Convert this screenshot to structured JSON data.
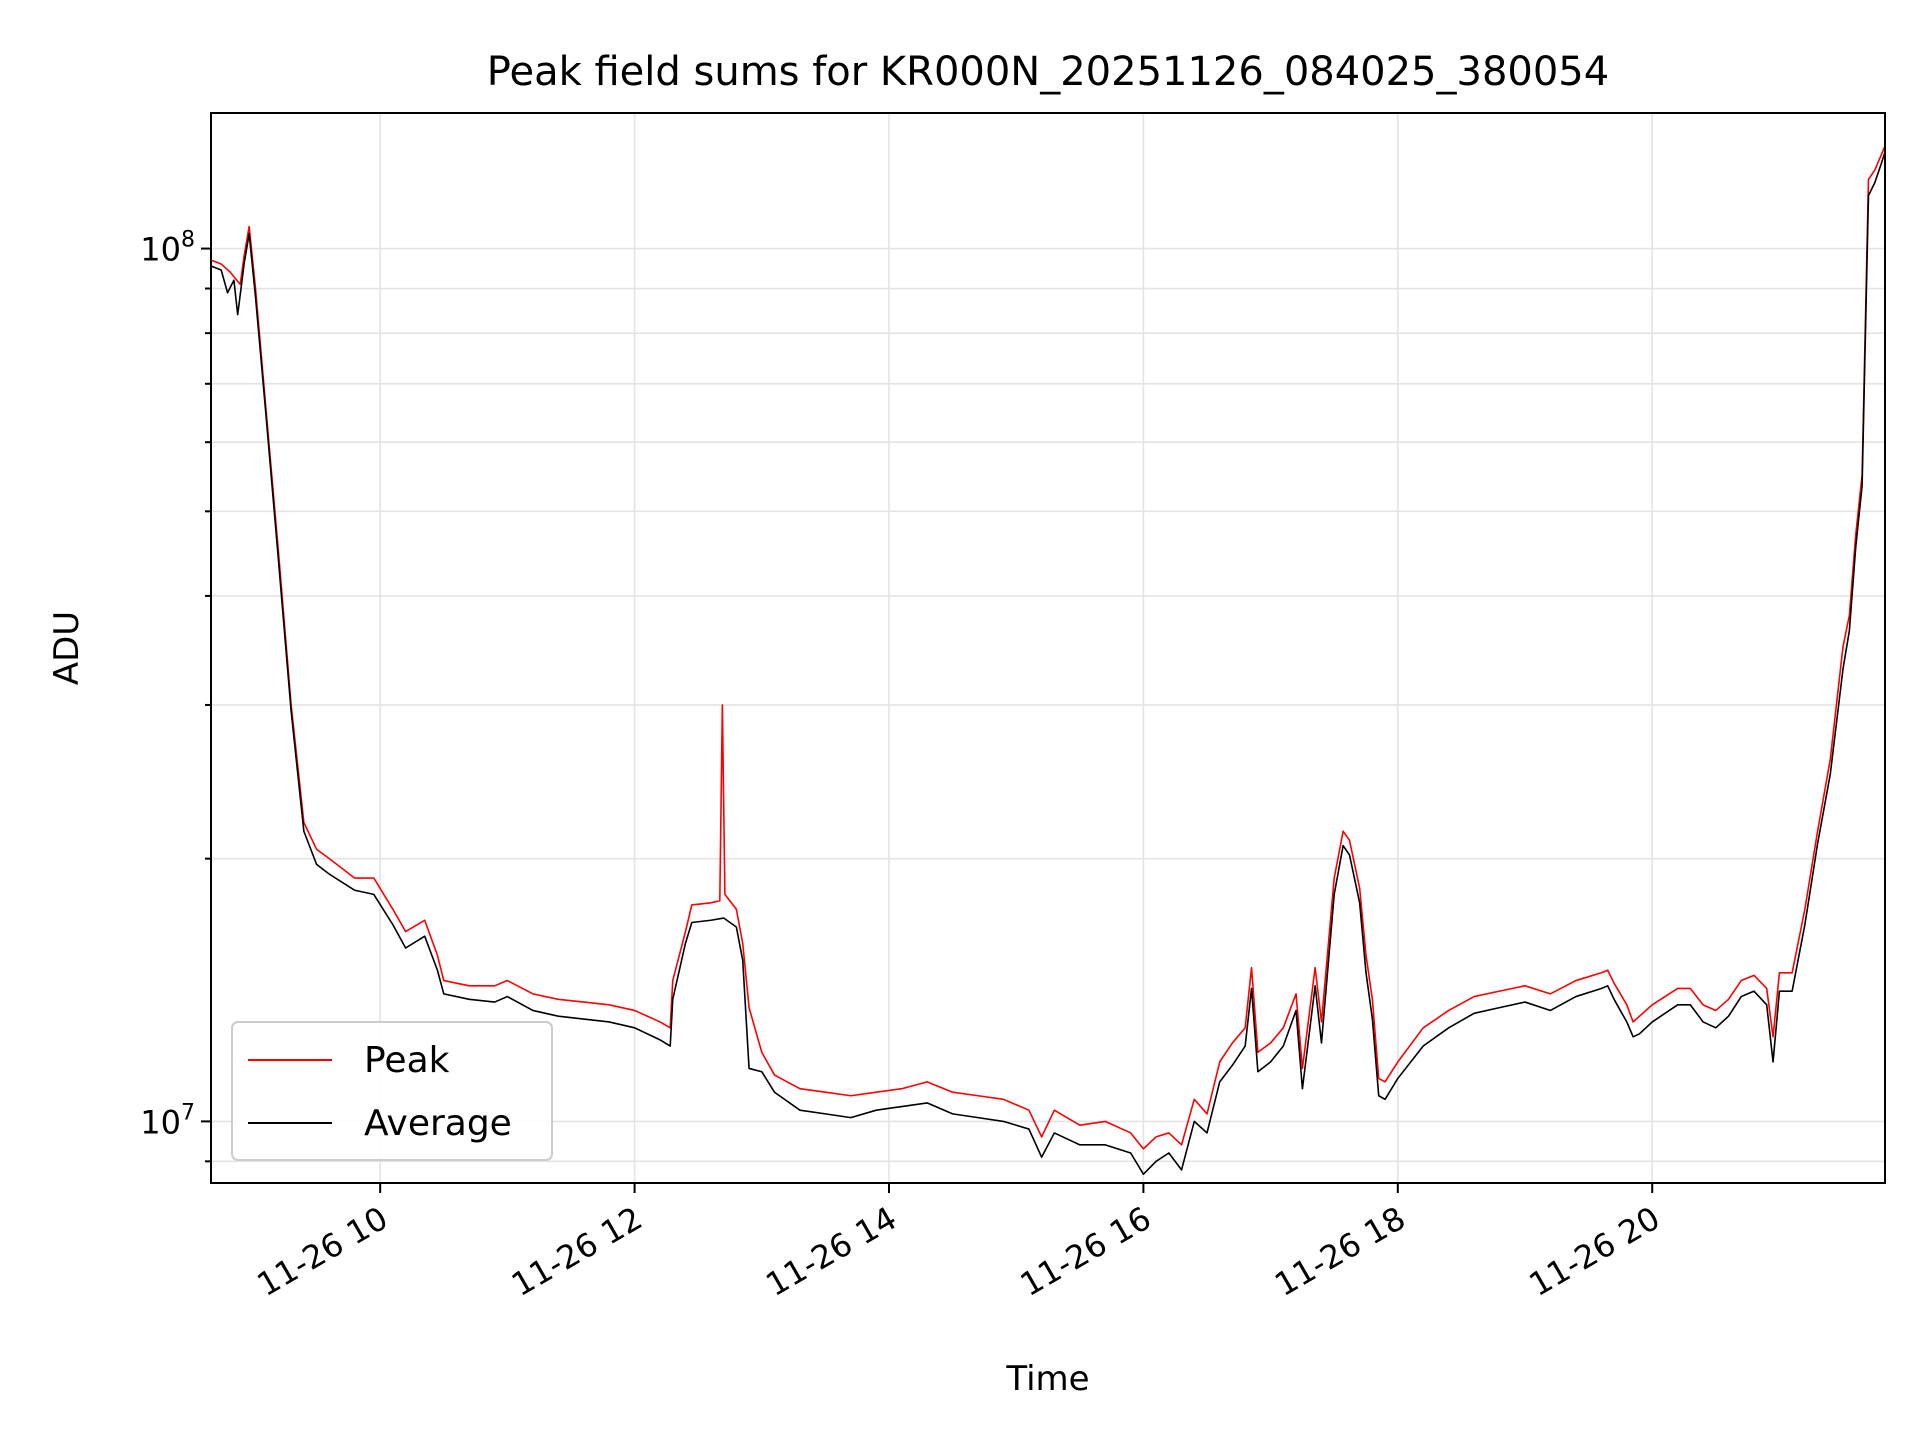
{
  "chart_data": {
    "type": "line",
    "title": "Peak field sums for KR000N_20251126_084025_380054",
    "xlabel": "Time",
    "ylabel": "ADU",
    "yscale": "log",
    "xlim": [
      8.67,
      21.83
    ],
    "ylim": [
      8500000,
      143000000
    ],
    "grid": true,
    "legend_position": "lower-left",
    "x_ticks": [
      {
        "value": 10,
        "label": "11-26 10"
      },
      {
        "value": 12,
        "label": "11-26 12"
      },
      {
        "value": 14,
        "label": "11-26 14"
      },
      {
        "value": 16,
        "label": "11-26 16"
      },
      {
        "value": 18,
        "label": "11-26 18"
      },
      {
        "value": 20,
        "label": "11-26 20"
      }
    ],
    "y_major_ticks": [
      {
        "value": 10000000,
        "base": "10",
        "exp": "7"
      },
      {
        "value": 100000000,
        "base": "10",
        "exp": "8"
      }
    ],
    "y_minor_ticks": [
      9000000,
      20000000,
      30000000,
      40000000,
      50000000,
      60000000,
      70000000,
      80000000,
      90000000
    ],
    "series": [
      {
        "name": "Peak",
        "color": "#ff0000",
        "points": [
          [
            8.67,
            97000000
          ],
          [
            8.75,
            96000000
          ],
          [
            8.82,
            94000000
          ],
          [
            8.9,
            91000000
          ],
          [
            8.93,
            98000000
          ],
          [
            8.97,
            106000000
          ],
          [
            9.02,
            90000000
          ],
          [
            9.1,
            66000000
          ],
          [
            9.2,
            45000000
          ],
          [
            9.3,
            30000000
          ],
          [
            9.4,
            22000000
          ],
          [
            9.5,
            20500000
          ],
          [
            9.6,
            20000000
          ],
          [
            9.8,
            19000000
          ],
          [
            9.95,
            19000000
          ],
          [
            10.1,
            17500000
          ],
          [
            10.2,
            16500000
          ],
          [
            10.35,
            17000000
          ],
          [
            10.45,
            15500000
          ],
          [
            10.5,
            14500000
          ],
          [
            10.7,
            14300000
          ],
          [
            10.9,
            14300000
          ],
          [
            11.0,
            14500000
          ],
          [
            11.2,
            14000000
          ],
          [
            11.4,
            13800000
          ],
          [
            11.6,
            13700000
          ],
          [
            11.8,
            13600000
          ],
          [
            12.0,
            13400000
          ],
          [
            12.2,
            13000000
          ],
          [
            12.28,
            12800000
          ],
          [
            12.3,
            14500000
          ],
          [
            12.4,
            16500000
          ],
          [
            12.45,
            17700000
          ],
          [
            12.6,
            17800000
          ],
          [
            12.67,
            17900000
          ],
          [
            12.69,
            30000000
          ],
          [
            12.71,
            18200000
          ],
          [
            12.8,
            17500000
          ],
          [
            12.85,
            16000000
          ],
          [
            12.9,
            13500000
          ],
          [
            13.0,
            12000000
          ],
          [
            13.1,
            11300000
          ],
          [
            13.3,
            10900000
          ],
          [
            13.5,
            10800000
          ],
          [
            13.7,
            10700000
          ],
          [
            13.9,
            10800000
          ],
          [
            14.1,
            10900000
          ],
          [
            14.3,
            11100000
          ],
          [
            14.5,
            10800000
          ],
          [
            14.7,
            10700000
          ],
          [
            14.9,
            10600000
          ],
          [
            15.1,
            10300000
          ],
          [
            15.2,
            9600000
          ],
          [
            15.3,
            10300000
          ],
          [
            15.5,
            9900000
          ],
          [
            15.7,
            10000000
          ],
          [
            15.9,
            9700000
          ],
          [
            16.0,
            9300000
          ],
          [
            16.1,
            9600000
          ],
          [
            16.2,
            9700000
          ],
          [
            16.3,
            9400000
          ],
          [
            16.4,
            10600000
          ],
          [
            16.5,
            10200000
          ],
          [
            16.6,
            11700000
          ],
          [
            16.7,
            12300000
          ],
          [
            16.8,
            12800000
          ],
          [
            16.85,
            15000000
          ],
          [
            16.9,
            12000000
          ],
          [
            17.0,
            12300000
          ],
          [
            17.1,
            12800000
          ],
          [
            17.2,
            14000000
          ],
          [
            17.25,
            11500000
          ],
          [
            17.35,
            15000000
          ],
          [
            17.4,
            13000000
          ],
          [
            17.5,
            19000000
          ],
          [
            17.57,
            21500000
          ],
          [
            17.62,
            21000000
          ],
          [
            17.7,
            18500000
          ],
          [
            17.75,
            15500000
          ],
          [
            17.8,
            13800000
          ],
          [
            17.85,
            11200000
          ],
          [
            17.9,
            11100000
          ],
          [
            18.0,
            11700000
          ],
          [
            18.2,
            12800000
          ],
          [
            18.4,
            13400000
          ],
          [
            18.6,
            13900000
          ],
          [
            18.8,
            14100000
          ],
          [
            19.0,
            14300000
          ],
          [
            19.2,
            14000000
          ],
          [
            19.4,
            14500000
          ],
          [
            19.6,
            14800000
          ],
          [
            19.65,
            14900000
          ],
          [
            19.7,
            14400000
          ],
          [
            19.8,
            13600000
          ],
          [
            19.85,
            13000000
          ],
          [
            19.9,
            13200000
          ],
          [
            20.0,
            13600000
          ],
          [
            20.2,
            14200000
          ],
          [
            20.3,
            14200000
          ],
          [
            20.4,
            13600000
          ],
          [
            20.5,
            13400000
          ],
          [
            20.6,
            13800000
          ],
          [
            20.7,
            14500000
          ],
          [
            20.8,
            14700000
          ],
          [
            20.9,
            14200000
          ],
          [
            20.95,
            12500000
          ],
          [
            21.0,
            14800000
          ],
          [
            21.1,
            14800000
          ],
          [
            21.2,
            17500000
          ],
          [
            21.3,
            21500000
          ],
          [
            21.4,
            26000000
          ],
          [
            21.5,
            35000000
          ],
          [
            21.55,
            38000000
          ],
          [
            21.6,
            47000000
          ],
          [
            21.65,
            55000000
          ],
          [
            21.7,
            120000000
          ],
          [
            21.75,
            123000000
          ],
          [
            21.8,
            128000000
          ],
          [
            21.83,
            131000000
          ]
        ]
      },
      {
        "name": "Average",
        "color": "#000000",
        "points": [
          [
            8.67,
            95500000
          ],
          [
            8.75,
            94500000
          ],
          [
            8.8,
            89000000
          ],
          [
            8.85,
            92000000
          ],
          [
            8.88,
            84000000
          ],
          [
            8.93,
            96000000
          ],
          [
            8.97,
            104000000
          ],
          [
            9.02,
            88000000
          ],
          [
            9.1,
            65000000
          ],
          [
            9.2,
            44000000
          ],
          [
            9.3,
            29500000
          ],
          [
            9.4,
            21500000
          ],
          [
            9.5,
            19700000
          ],
          [
            9.6,
            19200000
          ],
          [
            9.8,
            18400000
          ],
          [
            9.95,
            18200000
          ],
          [
            10.1,
            16800000
          ],
          [
            10.2,
            15800000
          ],
          [
            10.35,
            16300000
          ],
          [
            10.45,
            14900000
          ],
          [
            10.5,
            14000000
          ],
          [
            10.7,
            13800000
          ],
          [
            10.9,
            13700000
          ],
          [
            11.0,
            13900000
          ],
          [
            11.2,
            13400000
          ],
          [
            11.4,
            13200000
          ],
          [
            11.6,
            13100000
          ],
          [
            11.8,
            13000000
          ],
          [
            12.0,
            12800000
          ],
          [
            12.2,
            12400000
          ],
          [
            12.28,
            12200000
          ],
          [
            12.3,
            13800000
          ],
          [
            12.4,
            16000000
          ],
          [
            12.45,
            16900000
          ],
          [
            12.6,
            17000000
          ],
          [
            12.7,
            17100000
          ],
          [
            12.8,
            16700000
          ],
          [
            12.85,
            15300000
          ],
          [
            12.9,
            11500000
          ],
          [
            13.0,
            11400000
          ],
          [
            13.1,
            10800000
          ],
          [
            13.3,
            10300000
          ],
          [
            13.5,
            10200000
          ],
          [
            13.7,
            10100000
          ],
          [
            13.9,
            10300000
          ],
          [
            14.1,
            10400000
          ],
          [
            14.3,
            10500000
          ],
          [
            14.5,
            10200000
          ],
          [
            14.7,
            10100000
          ],
          [
            14.9,
            10000000
          ],
          [
            15.1,
            9800000
          ],
          [
            15.2,
            9100000
          ],
          [
            15.3,
            9700000
          ],
          [
            15.5,
            9400000
          ],
          [
            15.7,
            9400000
          ],
          [
            15.9,
            9200000
          ],
          [
            16.0,
            8700000
          ],
          [
            16.1,
            9000000
          ],
          [
            16.2,
            9200000
          ],
          [
            16.3,
            8800000
          ],
          [
            16.4,
            10000000
          ],
          [
            16.5,
            9700000
          ],
          [
            16.6,
            11100000
          ],
          [
            16.7,
            11600000
          ],
          [
            16.8,
            12200000
          ],
          [
            16.85,
            14200000
          ],
          [
            16.9,
            11400000
          ],
          [
            17.0,
            11700000
          ],
          [
            17.1,
            12200000
          ],
          [
            17.2,
            13400000
          ],
          [
            17.25,
            10900000
          ],
          [
            17.35,
            14300000
          ],
          [
            17.4,
            12300000
          ],
          [
            17.5,
            18200000
          ],
          [
            17.57,
            20700000
          ],
          [
            17.62,
            20200000
          ],
          [
            17.7,
            17800000
          ],
          [
            17.75,
            14800000
          ],
          [
            17.8,
            13100000
          ],
          [
            17.85,
            10700000
          ],
          [
            17.9,
            10600000
          ],
          [
            18.0,
            11200000
          ],
          [
            18.2,
            12200000
          ],
          [
            18.4,
            12800000
          ],
          [
            18.6,
            13300000
          ],
          [
            18.8,
            13500000
          ],
          [
            19.0,
            13700000
          ],
          [
            19.2,
            13400000
          ],
          [
            19.4,
            13900000
          ],
          [
            19.6,
            14200000
          ],
          [
            19.65,
            14300000
          ],
          [
            19.7,
            13800000
          ],
          [
            19.8,
            13000000
          ],
          [
            19.85,
            12500000
          ],
          [
            19.9,
            12600000
          ],
          [
            20.0,
            13000000
          ],
          [
            20.2,
            13600000
          ],
          [
            20.3,
            13600000
          ],
          [
            20.4,
            13000000
          ],
          [
            20.5,
            12800000
          ],
          [
            20.6,
            13200000
          ],
          [
            20.7,
            13900000
          ],
          [
            20.8,
            14100000
          ],
          [
            20.9,
            13600000
          ],
          [
            20.95,
            11700000
          ],
          [
            21.0,
            14100000
          ],
          [
            21.1,
            14100000
          ],
          [
            21.2,
            16800000
          ],
          [
            21.3,
            20800000
          ],
          [
            21.4,
            25000000
          ],
          [
            21.5,
            33000000
          ],
          [
            21.55,
            36500000
          ],
          [
            21.6,
            45500000
          ],
          [
            21.65,
            53500000
          ],
          [
            21.7,
            115000000
          ],
          [
            21.75,
            119000000
          ],
          [
            21.8,
            125000000
          ],
          [
            21.83,
            129000000
          ]
        ]
      }
    ]
  }
}
